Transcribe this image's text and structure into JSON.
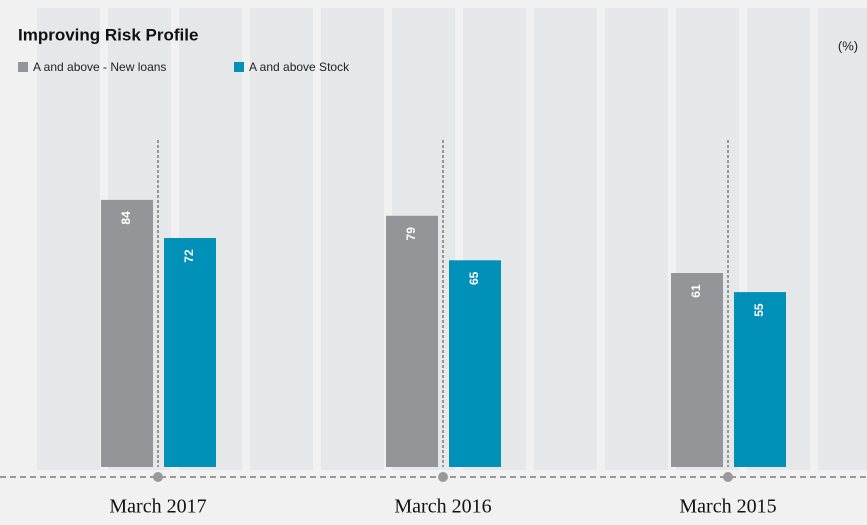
{
  "chart_data": {
    "type": "bar",
    "title": "Improving Risk Profile",
    "unit_label": "(%)",
    "categories": [
      "March 2017",
      "March 2016",
      "March 2015"
    ],
    "series": [
      {
        "name": "A and above - New loans",
        "color": "#939598",
        "values": [
          84,
          79,
          61
        ]
      },
      {
        "name": "A and above Stock",
        "color": "#0090b8",
        "values": [
          72,
          65,
          55
        ]
      }
    ]
  }
}
